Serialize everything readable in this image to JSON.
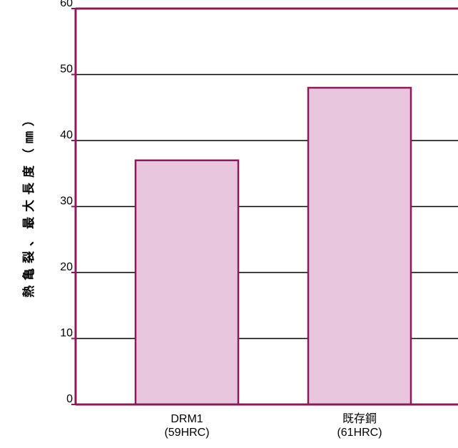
{
  "chart_data": {
    "type": "bar",
    "categories": [
      {
        "line1": "DRM1",
        "line2": "(59HRC)"
      },
      {
        "line1": "既存鋼",
        "line2": "(61HRC)"
      }
    ],
    "values": [
      37,
      48
    ],
    "ylabel": "熱亀裂、最大長度（㎜）",
    "ylim": [
      0,
      60
    ],
    "yticks": [
      0,
      10,
      20,
      30,
      40,
      50,
      60
    ],
    "grid": true,
    "colors": {
      "bar_fill": "#e8c6de",
      "bar_stroke": "#8c1a5a",
      "axis": "#8c1a5a",
      "grid": "#000000"
    }
  }
}
